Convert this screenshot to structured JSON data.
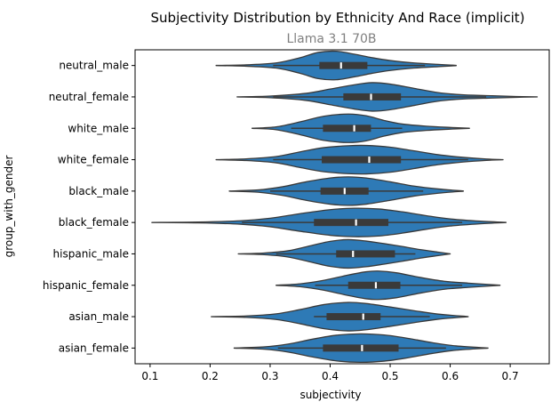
{
  "chart_data": {
    "type": "violin",
    "title": "Subjectivity Distribution by Ethnicity And Race (implicit)",
    "subtitle": "Llama 3.1 70B",
    "xlabel": "subjectivity",
    "ylabel": "group_with_gender",
    "xlim": [
      0.075,
      0.765
    ],
    "xticks": [
      0.1,
      0.2,
      0.3,
      0.4,
      0.5,
      0.6,
      0.7
    ],
    "xtick_labels": [
      "0.1",
      "0.2",
      "0.3",
      "0.4",
      "0.5",
      "0.6",
      "0.7"
    ],
    "orientation": "horizontal",
    "color": "#2e7ab6",
    "edge_color": "#3a3a3a",
    "grid": false,
    "categories": [
      "neutral_male",
      "neutral_female",
      "white_male",
      "white_female",
      "black_male",
      "black_female",
      "hispanic_male",
      "hispanic_female",
      "asian_male",
      "asian_female"
    ],
    "series": [
      {
        "min": 0.21,
        "whisker_low": 0.305,
        "q1": 0.382,
        "median": 0.418,
        "q3": 0.462,
        "whisker_high": 0.558,
        "max": 0.61,
        "density": [
          [
            0.21,
            0.005
          ],
          [
            0.26,
            0.05
          ],
          [
            0.31,
            0.18
          ],
          [
            0.35,
            0.55
          ],
          [
            0.38,
            0.92
          ],
          [
            0.41,
            1.0
          ],
          [
            0.44,
            0.8
          ],
          [
            0.47,
            0.55
          ],
          [
            0.5,
            0.35
          ],
          [
            0.54,
            0.18
          ],
          [
            0.58,
            0.08
          ],
          [
            0.61,
            0.01
          ]
        ]
      },
      {
        "min": 0.245,
        "whisker_low": 0.305,
        "q1": 0.422,
        "median": 0.468,
        "q3": 0.518,
        "whisker_high": 0.66,
        "max": 0.745,
        "density": [
          [
            0.245,
            0.005
          ],
          [
            0.3,
            0.06
          ],
          [
            0.36,
            0.25
          ],
          [
            0.4,
            0.55
          ],
          [
            0.44,
            0.85
          ],
          [
            0.47,
            1.0
          ],
          [
            0.5,
            0.9
          ],
          [
            0.54,
            0.6
          ],
          [
            0.58,
            0.3
          ],
          [
            0.62,
            0.15
          ],
          [
            0.67,
            0.08
          ],
          [
            0.71,
            0.03
          ],
          [
            0.745,
            0.005
          ]
        ]
      },
      {
        "min": 0.27,
        "whisker_low": 0.335,
        "q1": 0.388,
        "median": 0.44,
        "q3": 0.468,
        "whisker_high": 0.52,
        "max": 0.632,
        "density": [
          [
            0.27,
            0.005
          ],
          [
            0.31,
            0.1
          ],
          [
            0.35,
            0.45
          ],
          [
            0.39,
            0.85
          ],
          [
            0.43,
            1.0
          ],
          [
            0.46,
            0.88
          ],
          [
            0.49,
            0.55
          ],
          [
            0.52,
            0.3
          ],
          [
            0.56,
            0.15
          ],
          [
            0.6,
            0.06
          ],
          [
            0.632,
            0.005
          ]
        ]
      },
      {
        "min": 0.21,
        "whisker_low": 0.305,
        "q1": 0.386,
        "median": 0.465,
        "q3": 0.518,
        "whisker_high": 0.63,
        "max": 0.688,
        "density": [
          [
            0.21,
            0.005
          ],
          [
            0.26,
            0.06
          ],
          [
            0.31,
            0.22
          ],
          [
            0.35,
            0.55
          ],
          [
            0.39,
            0.85
          ],
          [
            0.43,
            0.98
          ],
          [
            0.46,
            1.0
          ],
          [
            0.5,
            0.88
          ],
          [
            0.54,
            0.62
          ],
          [
            0.58,
            0.35
          ],
          [
            0.62,
            0.17
          ],
          [
            0.66,
            0.05
          ],
          [
            0.688,
            0.005
          ]
        ]
      },
      {
        "min": 0.232,
        "whisker_low": 0.3,
        "q1": 0.384,
        "median": 0.424,
        "q3": 0.464,
        "whisker_high": 0.555,
        "max": 0.622,
        "density": [
          [
            0.232,
            0.005
          ],
          [
            0.28,
            0.08
          ],
          [
            0.32,
            0.3
          ],
          [
            0.36,
            0.65
          ],
          [
            0.4,
            0.92
          ],
          [
            0.43,
            1.0
          ],
          [
            0.46,
            0.92
          ],
          [
            0.5,
            0.65
          ],
          [
            0.54,
            0.35
          ],
          [
            0.58,
            0.15
          ],
          [
            0.622,
            0.005
          ]
        ]
      },
      {
        "min": 0.103,
        "whisker_low": 0.253,
        "q1": 0.373,
        "median": 0.443,
        "q3": 0.497,
        "whisker_high": 0.62,
        "max": 0.693,
        "density": [
          [
            0.103,
            0.003
          ],
          [
            0.18,
            0.03
          ],
          [
            0.25,
            0.12
          ],
          [
            0.3,
            0.3
          ],
          [
            0.35,
            0.62
          ],
          [
            0.4,
            0.9
          ],
          [
            0.44,
            1.0
          ],
          [
            0.48,
            0.95
          ],
          [
            0.52,
            0.75
          ],
          [
            0.56,
            0.48
          ],
          [
            0.6,
            0.25
          ],
          [
            0.65,
            0.09
          ],
          [
            0.693,
            0.005
          ]
        ]
      },
      {
        "min": 0.247,
        "whisker_low": 0.31,
        "q1": 0.41,
        "median": 0.438,
        "q3": 0.508,
        "whisker_high": 0.542,
        "max": 0.6,
        "density": [
          [
            0.247,
            0.005
          ],
          [
            0.29,
            0.06
          ],
          [
            0.33,
            0.22
          ],
          [
            0.37,
            0.6
          ],
          [
            0.4,
            0.88
          ],
          [
            0.43,
            1.0
          ],
          [
            0.46,
            0.9
          ],
          [
            0.49,
            0.72
          ],
          [
            0.52,
            0.52
          ],
          [
            0.55,
            0.3
          ],
          [
            0.58,
            0.12
          ],
          [
            0.6,
            0.005
          ]
        ]
      },
      {
        "min": 0.31,
        "whisker_low": 0.375,
        "q1": 0.43,
        "median": 0.476,
        "q3": 0.517,
        "whisker_high": 0.62,
        "max": 0.683,
        "density": [
          [
            0.31,
            0.005
          ],
          [
            0.35,
            0.1
          ],
          [
            0.39,
            0.35
          ],
          [
            0.43,
            0.72
          ],
          [
            0.46,
            0.95
          ],
          [
            0.48,
            1.0
          ],
          [
            0.51,
            0.88
          ],
          [
            0.55,
            0.55
          ],
          [
            0.59,
            0.28
          ],
          [
            0.63,
            0.15
          ],
          [
            0.683,
            0.005
          ]
        ]
      },
      {
        "min": 0.202,
        "whisker_low": 0.373,
        "q1": 0.394,
        "median": 0.455,
        "q3": 0.484,
        "whisker_high": 0.566,
        "max": 0.63,
        "density": [
          [
            0.202,
            0.005
          ],
          [
            0.26,
            0.05
          ],
          [
            0.31,
            0.2
          ],
          [
            0.35,
            0.5
          ],
          [
            0.39,
            0.85
          ],
          [
            0.43,
            1.0
          ],
          [
            0.46,
            0.92
          ],
          [
            0.5,
            0.68
          ],
          [
            0.54,
            0.42
          ],
          [
            0.58,
            0.18
          ],
          [
            0.63,
            0.005
          ]
        ]
      },
      {
        "min": 0.24,
        "whisker_low": 0.313,
        "q1": 0.388,
        "median": 0.453,
        "q3": 0.514,
        "whisker_high": 0.593,
        "max": 0.663,
        "density": [
          [
            0.24,
            0.005
          ],
          [
            0.29,
            0.08
          ],
          [
            0.33,
            0.28
          ],
          [
            0.37,
            0.62
          ],
          [
            0.41,
            0.9
          ],
          [
            0.45,
            1.0
          ],
          [
            0.49,
            0.92
          ],
          [
            0.53,
            0.68
          ],
          [
            0.57,
            0.38
          ],
          [
            0.61,
            0.15
          ],
          [
            0.663,
            0.005
          ]
        ]
      }
    ]
  }
}
